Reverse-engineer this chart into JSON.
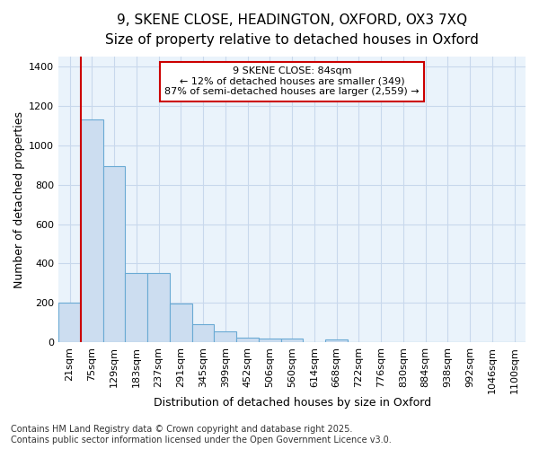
{
  "title_line1": "9, SKENE CLOSE, HEADINGTON, OXFORD, OX3 7XQ",
  "title_line2": "Size of property relative to detached houses in Oxford",
  "xlabel": "Distribution of detached houses by size in Oxford",
  "ylabel": "Number of detached properties",
  "bar_labels": [
    "21sqm",
    "75sqm",
    "129sqm",
    "183sqm",
    "237sqm",
    "291sqm",
    "345sqm",
    "399sqm",
    "452sqm",
    "506sqm",
    "560sqm",
    "614sqm",
    "668sqm",
    "722sqm",
    "776sqm",
    "830sqm",
    "884sqm",
    "938sqm",
    "992sqm",
    "1046sqm",
    "1100sqm"
  ],
  "bar_values": [
    200,
    1130,
    895,
    350,
    350,
    195,
    90,
    55,
    25,
    20,
    20,
    0,
    15,
    0,
    0,
    0,
    0,
    0,
    0,
    0,
    0
  ],
  "bar_color": "#ccddf0",
  "bar_edge_color": "#6aaad4",
  "red_line_x": 0.5,
  "annotation_text": "9 SKENE CLOSE: 84sqm\n← 12% of detached houses are smaller (349)\n87% of semi-detached houses are larger (2,559) →",
  "annotation_box_color": "#ffffff",
  "annotation_box_edge": "#cc0000",
  "ylim": [
    0,
    1450
  ],
  "yticks": [
    0,
    200,
    400,
    600,
    800,
    1000,
    1200,
    1400
  ],
  "footer_text": "Contains HM Land Registry data © Crown copyright and database right 2025.\nContains public sector information licensed under the Open Government Licence v3.0.",
  "background_color": "#ffffff",
  "plot_bg_color": "#eaf3fb",
  "grid_color": "#c8d8ec",
  "title1_fontsize": 11,
  "title2_fontsize": 10,
  "axis_label_fontsize": 9,
  "tick_fontsize": 8,
  "footer_fontsize": 7
}
